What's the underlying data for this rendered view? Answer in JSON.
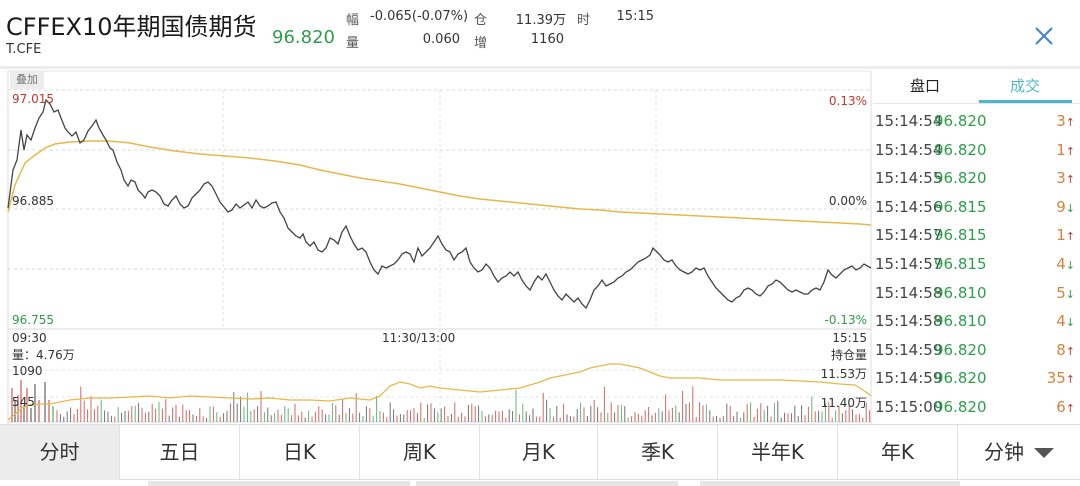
{
  "header": {
    "title": "CFFEX10年期国债期货",
    "symbol": "T.CFE",
    "last_price": "96.820",
    "stats": {
      "change_label": "幅",
      "change_value": "-0.065(-0.07%)",
      "position_label": "仓",
      "position_value": "11.39万",
      "time_label": "时",
      "time_value": "15:15",
      "volume_label": "量",
      "volume_value": "0.060",
      "increase_label": "增",
      "increase_value": "1160"
    },
    "close_icon": "close-icon"
  },
  "chart": {
    "overlay_label": "叠加",
    "price_high": "97.015",
    "price_mid": "96.885",
    "price_low": "96.755",
    "pct_high": "0.13%",
    "pct_mid": "0.00%",
    "pct_low": "-0.13%",
    "time_start": "09:30",
    "time_mid": "11:30/13:00",
    "time_end": "15:15",
    "volume_label": "量：4.76万",
    "vol_high": "1090",
    "vol_mid": "545",
    "oi_label": "持仓量",
    "oi_high": "11.53万",
    "oi_low": "11.40万",
    "colors": {
      "price_line": "#444444",
      "avg_line": "#e6b84a",
      "oi_line": "#e6b84a",
      "up": "#c0392b",
      "down": "#2e9e4b"
    }
  },
  "chart_data": {
    "type": "line",
    "title": "CFFEX10年期国债期货 分时",
    "x_ticks": [
      "09:30",
      "11:30/13:00",
      "15:15"
    ],
    "y_ticks_left": [
      "97.015",
      "96.885",
      "96.755"
    ],
    "y_ticks_right": [
      "0.13%",
      "0.00%",
      "-0.13%"
    ],
    "ylim": [
      96.755,
      97.015
    ],
    "series": [
      {
        "name": "price",
        "values": [
          96.885,
          96.95,
          96.99,
          96.97,
          96.995,
          97.015,
          96.985,
          96.975,
          96.98,
          96.955,
          96.945,
          96.915,
          96.905,
          96.92,
          96.9,
          96.905,
          96.875,
          96.86,
          96.84,
          96.86,
          96.845,
          96.83,
          96.82,
          96.835,
          96.81,
          96.835,
          96.83,
          96.815,
          96.8,
          96.81,
          96.795,
          96.795,
          96.785,
          96.78,
          96.775,
          96.8,
          96.79,
          96.82,
          96.83,
          96.8,
          96.815,
          96.79,
          96.795,
          96.79,
          96.8,
          96.82
        ]
      },
      {
        "name": "avg_price",
        "values": [
          96.885,
          96.92,
          96.935,
          96.94,
          96.94,
          96.94,
          96.935,
          96.93,
          96.925,
          96.92,
          96.915,
          96.91,
          96.905,
          96.9,
          96.895,
          96.89,
          96.887,
          96.885,
          96.882,
          96.88,
          96.878,
          96.875
        ]
      }
    ],
    "volume_axis": {
      "ticks": [
        "1090",
        "545"
      ]
    },
    "open_interest_axis": {
      "ticks": [
        "11.53万",
        "11.40万"
      ]
    }
  },
  "side": {
    "tabs": [
      {
        "label": "盘口",
        "active": false
      },
      {
        "label": "成交",
        "active": true
      }
    ],
    "trades": [
      {
        "time": "15:14:54",
        "price": "96.820",
        "vol": "3",
        "dir": "up"
      },
      {
        "time": "15:14:54",
        "price": "96.820",
        "vol": "1",
        "dir": "up"
      },
      {
        "time": "15:14:55",
        "price": "96.820",
        "vol": "3",
        "dir": "up"
      },
      {
        "time": "15:14:56",
        "price": "96.815",
        "vol": "9",
        "dir": "down"
      },
      {
        "time": "15:14:57",
        "price": "96.815",
        "vol": "1",
        "dir": "up"
      },
      {
        "time": "15:14:57",
        "price": "96.815",
        "vol": "4",
        "dir": "down"
      },
      {
        "time": "15:14:58",
        "price": "96.810",
        "vol": "5",
        "dir": "down"
      },
      {
        "time": "15:14:58",
        "price": "96.810",
        "vol": "4",
        "dir": "down"
      },
      {
        "time": "15:14:59",
        "price": "96.820",
        "vol": "8",
        "dir": "up"
      },
      {
        "time": "15:14:59",
        "price": "96.820",
        "vol": "35",
        "dir": "up"
      },
      {
        "time": "15:15:00",
        "price": "96.820",
        "vol": "6",
        "dir": "up"
      }
    ],
    "arrow_up": "↑",
    "arrow_down": "↓"
  },
  "tabbar": {
    "tabs": [
      {
        "label": "分时",
        "active": true
      },
      {
        "label": "五日"
      },
      {
        "label": "日K"
      },
      {
        "label": "周K"
      },
      {
        "label": "月K"
      },
      {
        "label": "季K"
      },
      {
        "label": "半年K"
      },
      {
        "label": "年K"
      },
      {
        "label": "分钟",
        "dropdown": true
      }
    ]
  }
}
